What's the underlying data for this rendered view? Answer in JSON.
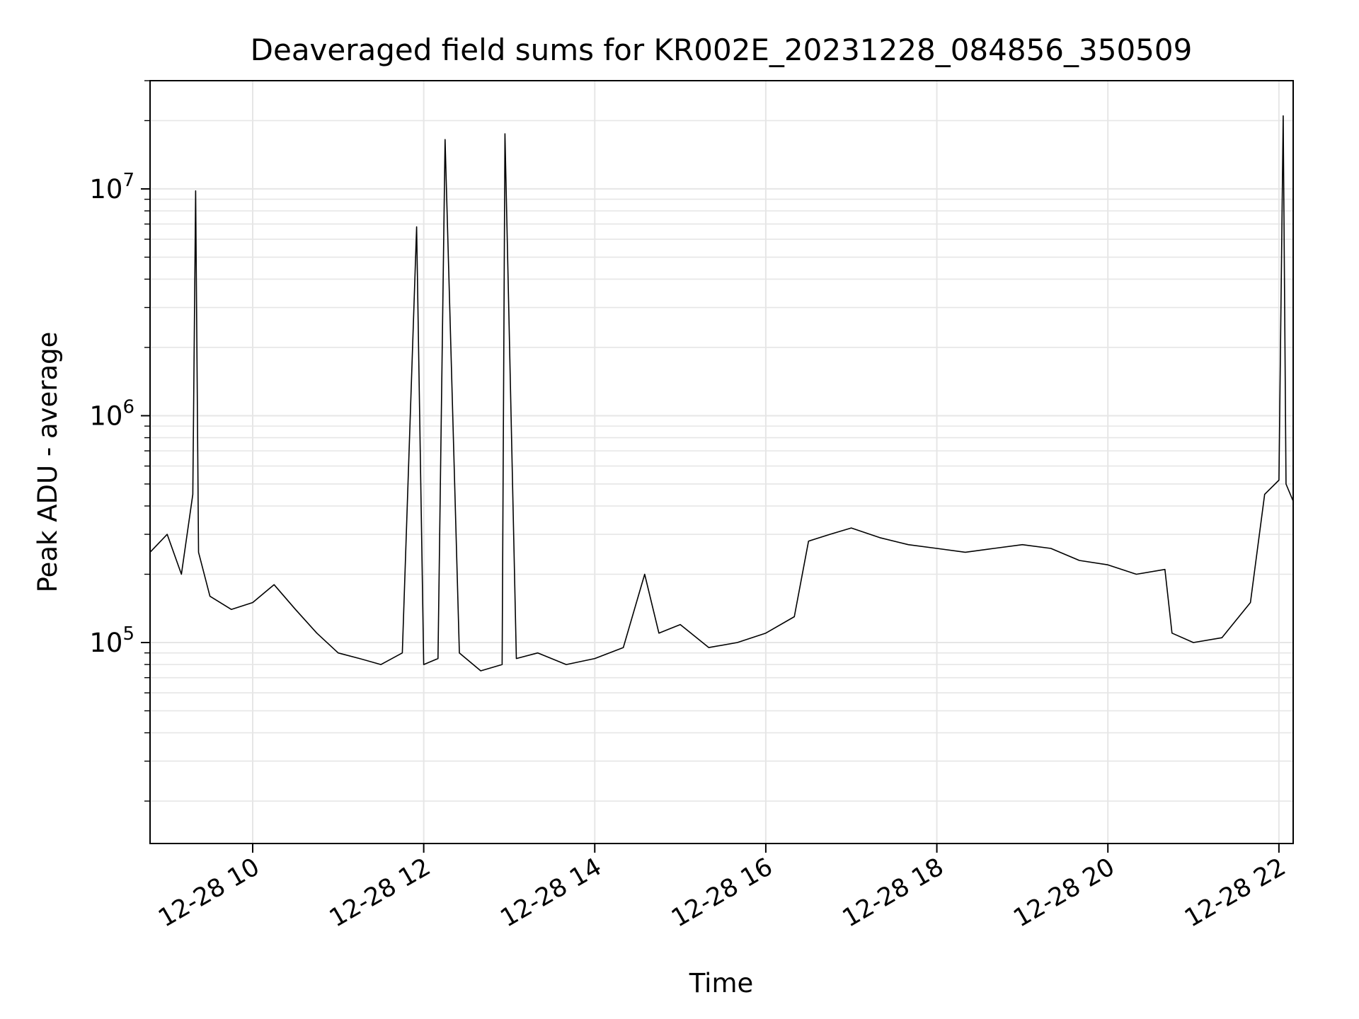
{
  "chart_data": {
    "type": "line",
    "title": "Deaveraged field sums for KR002E_20231228_084856_350509",
    "xlabel": "Time",
    "ylabel": "Peak ADU - average",
    "y_scale": "log",
    "ylim": [
      13000,
      30000000
    ],
    "xlim": [
      "2023-12-28 08:48",
      "2023-12-28 22:10"
    ],
    "grid": true,
    "line_color": "#000000",
    "x_ticks": [
      {
        "value": "2023-12-28 10:00",
        "label": "12-28 10"
      },
      {
        "value": "2023-12-28 12:00",
        "label": "12-28 12"
      },
      {
        "value": "2023-12-28 14:00",
        "label": "12-28 14"
      },
      {
        "value": "2023-12-28 16:00",
        "label": "12-28 16"
      },
      {
        "value": "2023-12-28 18:00",
        "label": "12-28 18"
      },
      {
        "value": "2023-12-28 20:00",
        "label": "12-28 20"
      },
      {
        "value": "2023-12-28 22:00",
        "label": "12-28 22"
      }
    ],
    "y_ticks": [
      {
        "value": 100000,
        "base": "10",
        "exp": "5"
      },
      {
        "value": 1000000,
        "base": "10",
        "exp": "6"
      },
      {
        "value": 10000000,
        "base": "10",
        "exp": "7"
      }
    ],
    "series": [
      {
        "x": [
          "2023-12-28 08:48",
          "2023-12-28 09:00",
          "2023-12-28 09:10",
          "2023-12-28 09:18",
          "2023-12-28 09:20",
          "2023-12-28 09:22",
          "2023-12-28 09:30",
          "2023-12-28 09:45",
          "2023-12-28 10:00",
          "2023-12-28 10:15",
          "2023-12-28 10:30",
          "2023-12-28 10:45",
          "2023-12-28 11:00",
          "2023-12-28 11:15",
          "2023-12-28 11:30",
          "2023-12-28 11:45",
          "2023-12-28 11:55",
          "2023-12-28 12:00",
          "2023-12-28 12:10",
          "2023-12-28 12:15",
          "2023-12-28 12:25",
          "2023-12-28 12:40",
          "2023-12-28 12:55",
          "2023-12-28 12:57",
          "2023-12-28 13:05",
          "2023-12-28 13:20",
          "2023-12-28 13:40",
          "2023-12-28 14:00",
          "2023-12-28 14:20",
          "2023-12-28 14:35",
          "2023-12-28 14:45",
          "2023-12-28 15:00",
          "2023-12-28 15:20",
          "2023-12-28 15:40",
          "2023-12-28 16:00",
          "2023-12-28 16:20",
          "2023-12-28 16:30",
          "2023-12-28 16:45",
          "2023-12-28 17:00",
          "2023-12-28 17:20",
          "2023-12-28 17:40",
          "2023-12-28 18:00",
          "2023-12-28 18:20",
          "2023-12-28 18:40",
          "2023-12-28 19:00",
          "2023-12-28 19:20",
          "2023-12-28 19:40",
          "2023-12-28 20:00",
          "2023-12-28 20:20",
          "2023-12-28 20:40",
          "2023-12-28 20:45",
          "2023-12-28 21:00",
          "2023-12-28 21:20",
          "2023-12-28 21:40",
          "2023-12-28 21:50",
          "2023-12-28 22:00",
          "2023-12-28 22:03",
          "2023-12-28 22:05",
          "2023-12-28 22:10"
        ],
        "values": [
          250000,
          300000,
          200000,
          450000,
          9800000,
          250000,
          160000,
          140000,
          150000,
          180000,
          140000,
          110000,
          90000,
          85000,
          80000,
          90000,
          6800000,
          80000,
          85000,
          16500000,
          90000,
          75000,
          80000,
          17500000,
          85000,
          90000,
          80000,
          85000,
          95000,
          200000,
          110000,
          120000,
          95000,
          100000,
          110000,
          130000,
          280000,
          300000,
          320000,
          290000,
          270000,
          260000,
          250000,
          260000,
          270000,
          260000,
          230000,
          220000,
          200000,
          210000,
          110000,
          100000,
          105000,
          150000,
          450000,
          520000,
          21000000,
          500000,
          420000
        ]
      }
    ]
  }
}
